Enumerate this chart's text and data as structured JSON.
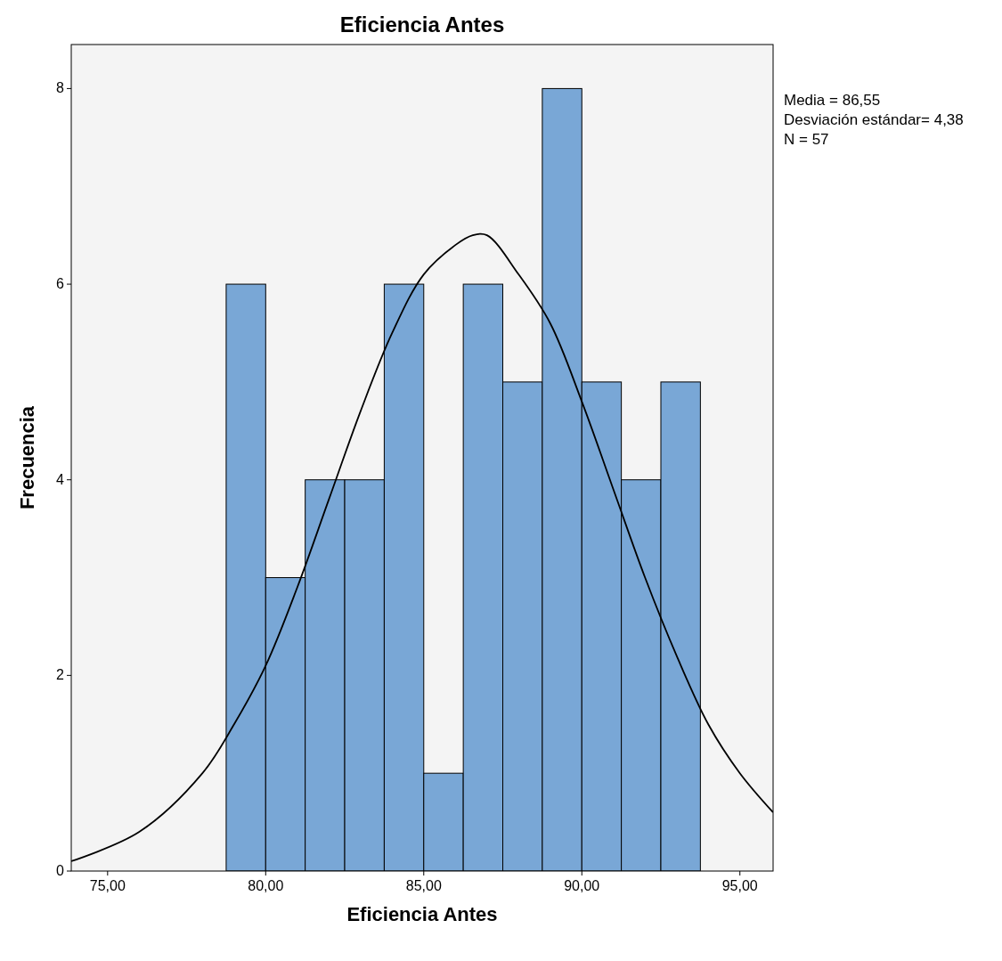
{
  "chart_data": {
    "type": "histogram",
    "title": "Eficiencia Antes",
    "xlabel": "Eficiencia Antes",
    "ylabel": "Frecuencia",
    "xlim": [
      73.85,
      96.05
    ],
    "ylim": [
      0,
      8.45
    ],
    "xticks": [
      {
        "value": 75,
        "label": "75,00"
      },
      {
        "value": 80,
        "label": "80,00"
      },
      {
        "value": 85,
        "label": "85,00"
      },
      {
        "value": 90,
        "label": "90,00"
      },
      {
        "value": 95,
        "label": "95,00"
      }
    ],
    "yticks": [
      0,
      2,
      4,
      6,
      8
    ],
    "grid": false,
    "series": [
      {
        "color": "#79a7d6",
        "bins": [
          78.75,
          80,
          81.25,
          82.5,
          83.75,
          85,
          86.25,
          87.5,
          88.75,
          90,
          91.25,
          92.5,
          93.75
        ],
        "values": [
          6,
          3,
          4,
          4,
          6,
          1,
          6,
          5,
          8,
          5,
          4,
          5
        ]
      },
      {
        "type": "line",
        "color": "#000000",
        "x": [
          73.85,
          76,
          78,
          79,
          80,
          81,
          82,
          83,
          84,
          85,
          86,
          86.55,
          87,
          88,
          89,
          90,
          91,
          92,
          93,
          94,
          95,
          96.05
        ],
        "values": [
          0.1,
          0.4,
          1.0,
          1.5,
          2.1,
          2.9,
          3.8,
          4.7,
          5.5,
          6.1,
          6.4,
          6.5,
          6.5,
          6.1,
          5.6,
          4.8,
          3.9,
          3.0,
          2.2,
          1.5,
          1.0,
          0.6
        ]
      }
    ],
    "annotations": [
      "Media = 86,55",
      "Desviación estándar= 4,38",
      "N = 57"
    ]
  }
}
